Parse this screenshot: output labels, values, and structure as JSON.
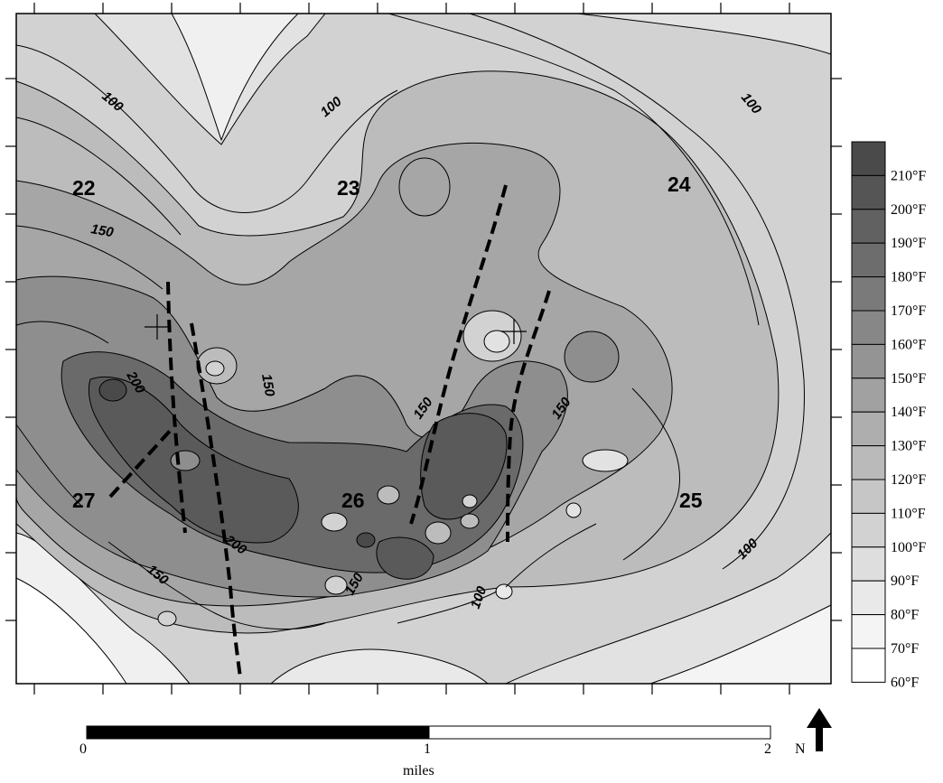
{
  "map": {
    "section_labels": [
      "22",
      "23",
      "24",
      "25",
      "26",
      "27"
    ],
    "contour_labels": [
      "100",
      "100",
      "100",
      "100",
      "150",
      "150",
      "150",
      "150",
      "150",
      "150",
      "200",
      "200",
      "100"
    ]
  },
  "legend": {
    "entries": [
      "210°F",
      "200°F",
      "190°F",
      "180°F",
      "170°F",
      "160°F",
      "150°F",
      "140°F",
      "130°F",
      "120°F",
      "110°F",
      "100°F",
      "90°F",
      "80°F",
      "70°F",
      "60°F"
    ],
    "colors": [
      "#4a4a4a",
      "#555555",
      "#616161",
      "#6d6d6d",
      "#7a7a7a",
      "#878787",
      "#949494",
      "#a1a1a1",
      "#aeaeae",
      "#bababa",
      "#c6c6c6",
      "#d2d2d2",
      "#dedede",
      "#e9e9e9",
      "#f4f4f4",
      "#ffffff"
    ]
  },
  "scale_bar": {
    "ticks": [
      "0",
      "1",
      "2"
    ],
    "unit": "miles"
  },
  "north_arrow": {
    "label": "N"
  }
}
